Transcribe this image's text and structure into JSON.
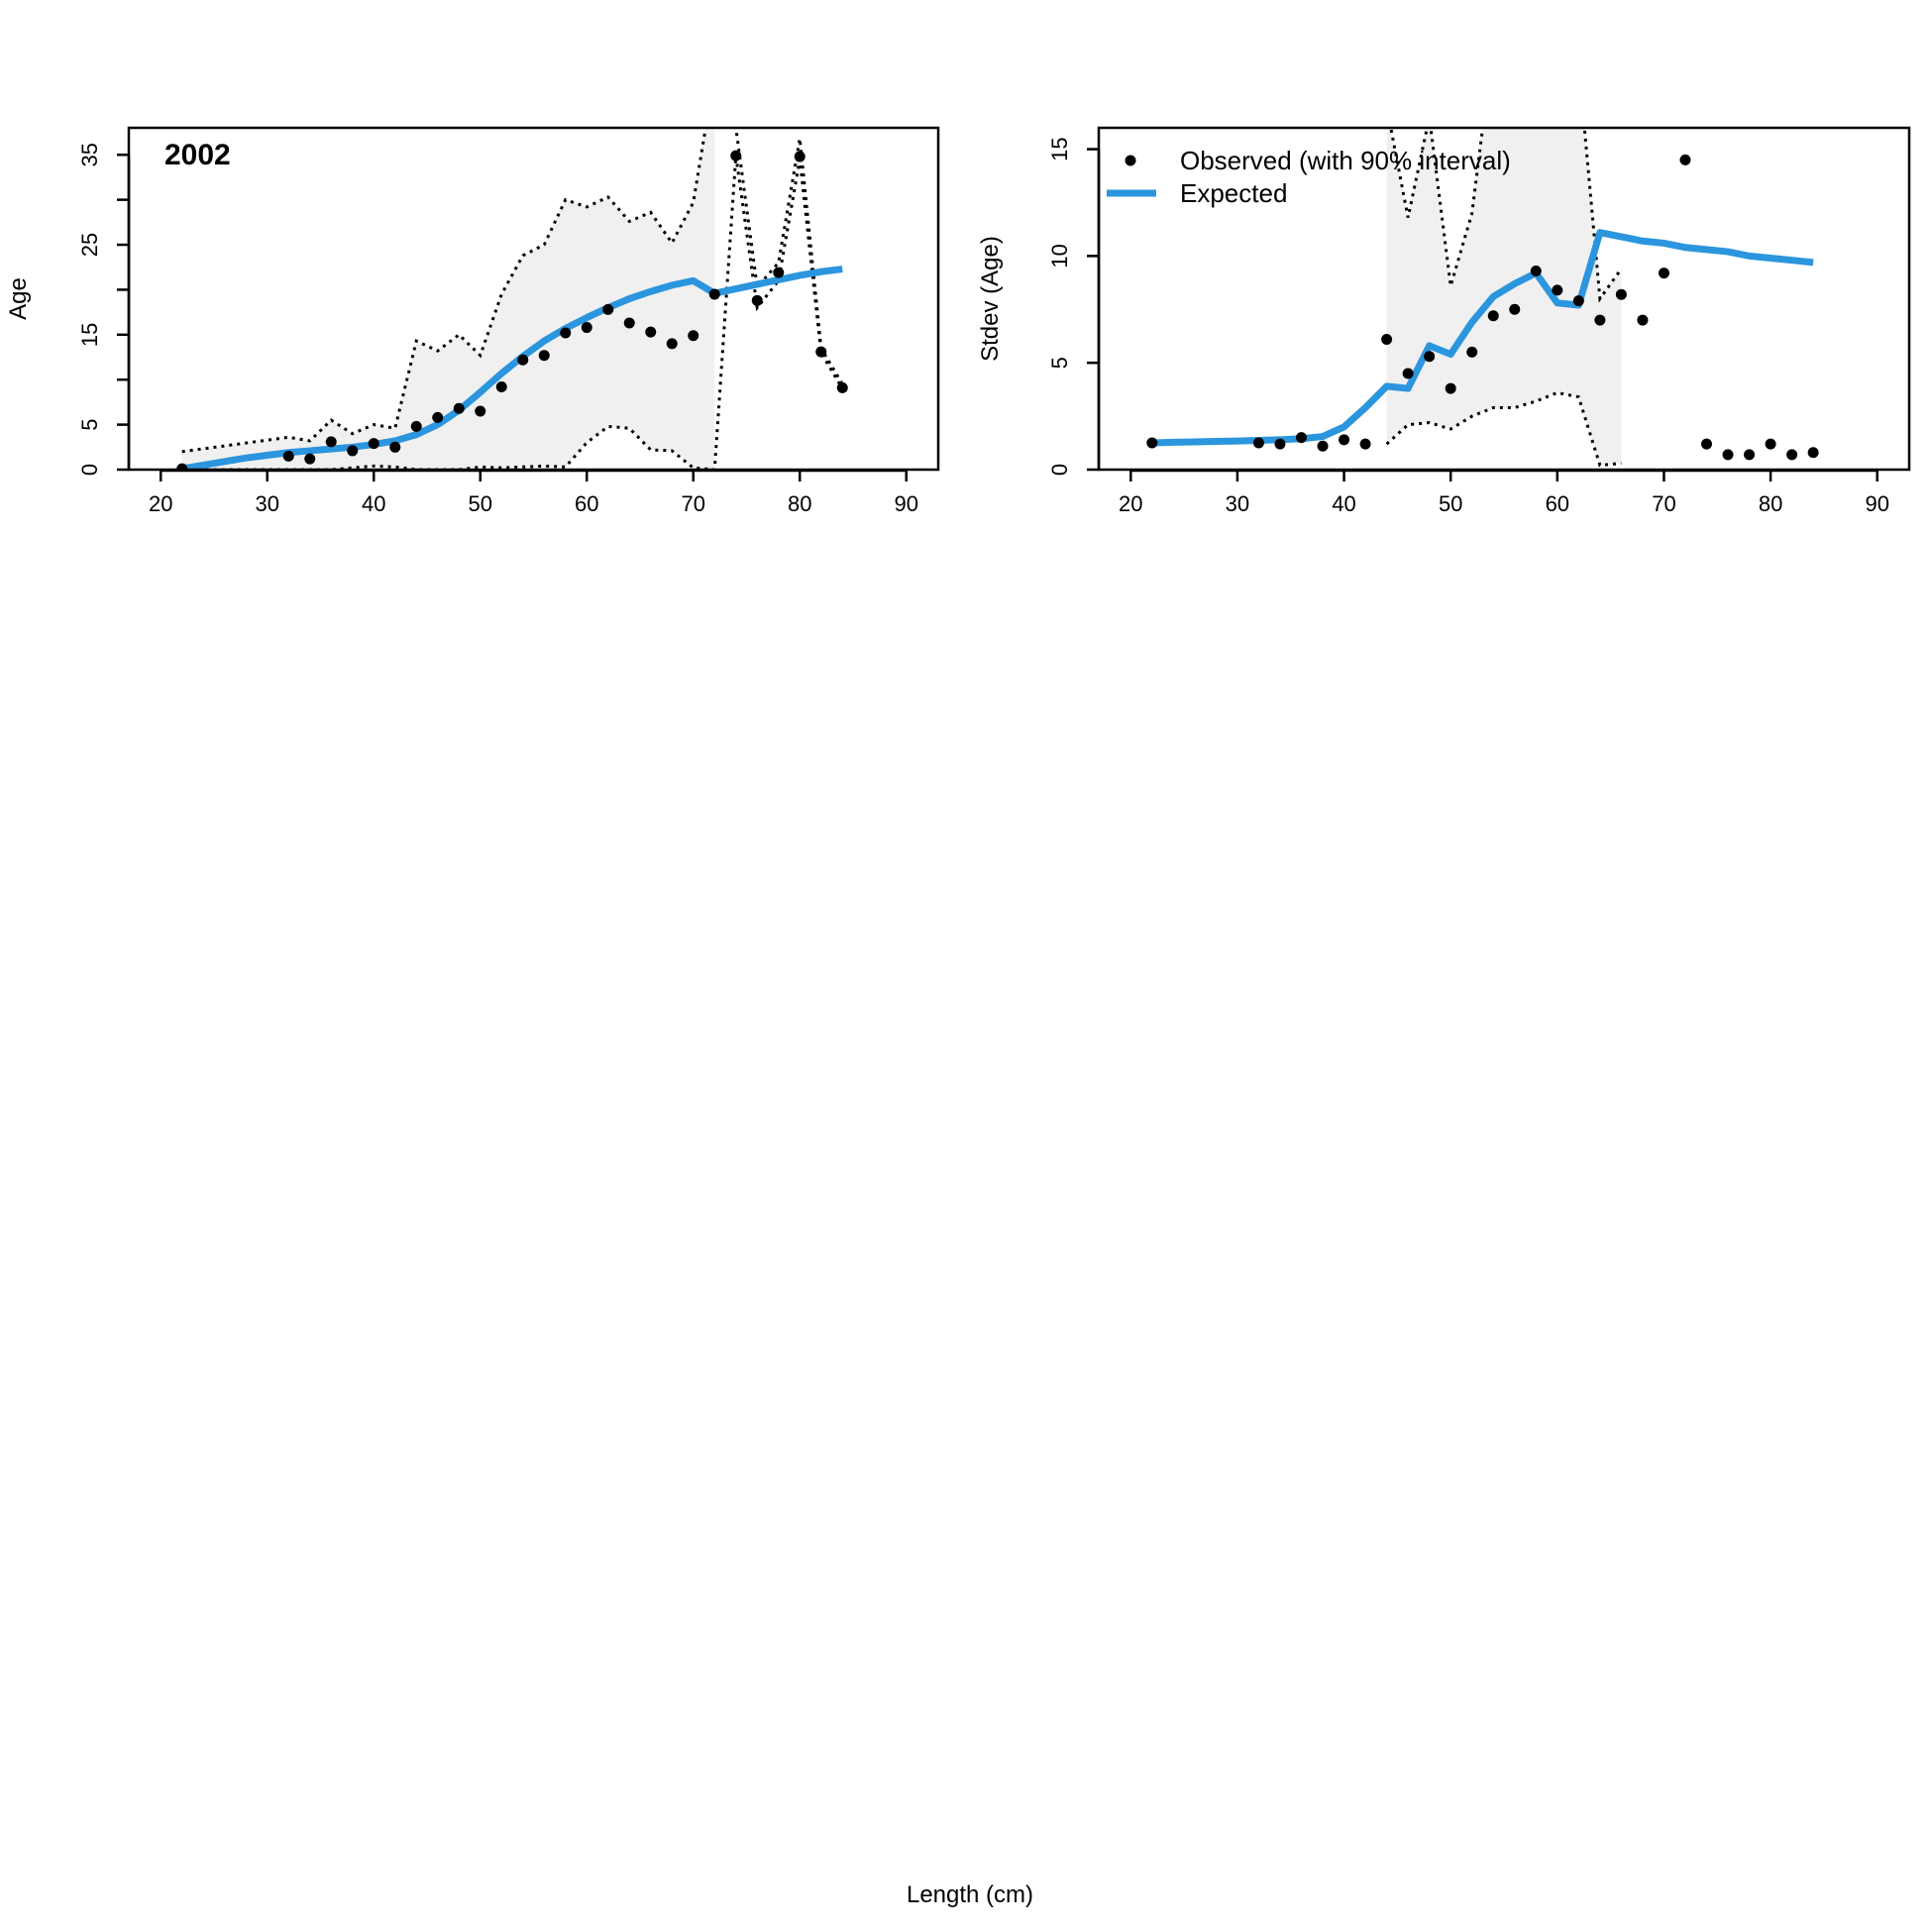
{
  "figure": {
    "shared_xlabel": "Length (cm)",
    "colors": {
      "expected": "#2b95de",
      "interval_fill": "#f0f0f0",
      "points": "#000000",
      "interval_line": "#000000"
    }
  },
  "chart_data": [
    {
      "type": "line",
      "panel_label": "2002",
      "xlabel": "",
      "ylabel": "Age",
      "xlim": [
        17,
        93
      ],
      "ylim": [
        0,
        38
      ],
      "xticks": [
        20,
        30,
        40,
        50,
        60,
        70,
        80,
        90
      ],
      "yticks": [
        0,
        5,
        15,
        25,
        35
      ],
      "yticks_minor": [
        10,
        20,
        30
      ],
      "grid": false,
      "series": [
        {
          "name": "Observed (with 90% interval)",
          "kind": "points",
          "x": [
            22,
            32,
            34,
            36,
            38,
            40,
            42,
            44,
            46,
            48,
            50,
            52,
            54,
            56,
            58,
            60,
            62,
            64,
            66,
            68,
            70,
            72,
            74,
            76,
            78,
            80,
            82,
            84
          ],
          "y": [
            0.1,
            1.5,
            1.2,
            3.1,
            2.1,
            2.9,
            2.5,
            4.8,
            5.8,
            6.8,
            6.5,
            9.2,
            12.2,
            12.7,
            15.2,
            15.8,
            17.8,
            16.3,
            15.3,
            14.0,
            14.9,
            19.5,
            34.9,
            18.8,
            21.9,
            34.8,
            13.1,
            9.1
          ],
          "interval_low": [
            0,
            0,
            0,
            0,
            0.2,
            0.4,
            0.3,
            0,
            0,
            0,
            0.3,
            0.2,
            0.3,
            0.4,
            0.3,
            3.0,
            4.8,
            4.6,
            2.2,
            2.1,
            0.2,
            0,
            34.9,
            18.0,
            21.0,
            34.5,
            13.0,
            9.0
          ],
          "interval_high": [
            2.0,
            3.6,
            3.2,
            5.5,
            4.0,
            5.0,
            4.6,
            14.3,
            13.2,
            15.0,
            12.7,
            19.5,
            23.8,
            25.0,
            30.0,
            29.2,
            30.3,
            27.6,
            28.6,
            25.2,
            29.7,
            44.0,
            38.0,
            20.3,
            23.0,
            36.8,
            13.5,
            9.5
          ],
          "interval_shaded": [
            true,
            true,
            true,
            true,
            true,
            true,
            true,
            true,
            true,
            true,
            true,
            true,
            true,
            true,
            true,
            true,
            true,
            true,
            true,
            true,
            true,
            true,
            false,
            false,
            false,
            false,
            false,
            false
          ]
        },
        {
          "name": "Expected",
          "kind": "line",
          "x": [
            22,
            24,
            26,
            28,
            30,
            32,
            34,
            36,
            38,
            40,
            42,
            44,
            46,
            48,
            50,
            52,
            54,
            56,
            58,
            60,
            62,
            64,
            66,
            68,
            70,
            72,
            74,
            76,
            78,
            80,
            82,
            84
          ],
          "y": [
            0.1,
            0.5,
            0.9,
            1.3,
            1.6,
            1.9,
            2.1,
            2.3,
            2.5,
            2.8,
            3.2,
            3.9,
            5.0,
            6.6,
            8.6,
            10.7,
            12.6,
            14.3,
            15.7,
            16.9,
            18.0,
            19.0,
            19.8,
            20.5,
            21.0,
            19.6,
            20.1,
            20.6,
            21.1,
            21.6,
            22.0,
            22.3
          ]
        }
      ]
    },
    {
      "type": "line",
      "panel_label": "",
      "xlabel": "",
      "ylabel": "Stdev (Age)",
      "xlim": [
        17,
        93
      ],
      "ylim": [
        0,
        16
      ],
      "xticks": [
        20,
        30,
        40,
        50,
        60,
        70,
        80,
        90
      ],
      "yticks": [
        0,
        5,
        10,
        15
      ],
      "grid": false,
      "legend": {
        "placement": "top-left",
        "entries": [
          {
            "label": "Observed (with 90% interval)",
            "symbol": "point"
          },
          {
            "label": "Expected",
            "symbol": "line"
          }
        ]
      },
      "series": [
        {
          "name": "Observed (with 90% interval)",
          "kind": "points",
          "x": [
            22,
            32,
            34,
            36,
            38,
            40,
            42,
            44,
            46,
            48,
            50,
            52,
            54,
            56,
            58,
            60,
            62,
            64,
            66,
            68,
            70,
            72,
            74,
            76,
            78,
            80,
            82,
            84
          ],
          "y": [
            1.25,
            1.25,
            1.2,
            1.5,
            1.1,
            1.4,
            1.2,
            6.1,
            4.5,
            5.3,
            3.8,
            5.5,
            7.2,
            7.5,
            9.3,
            8.4,
            7.9,
            7.0,
            8.2,
            7.0,
            9.2,
            14.5,
            1.2,
            0.7,
            0.7,
            1.2,
            0.7,
            0.8
          ],
          "interval_low": [
            null,
            null,
            null,
            null,
            null,
            null,
            null,
            1.2,
            2.1,
            2.2,
            1.9,
            2.5,
            2.9,
            2.9,
            3.2,
            3.6,
            3.4,
            0.2,
            0.3,
            null,
            null,
            null,
            null,
            null,
            null,
            null,
            null,
            null
          ],
          "interval_high": [
            null,
            null,
            null,
            null,
            null,
            null,
            null,
            17.0,
            11.8,
            16.5,
            8.6,
            12.0,
            20.0,
            22.0,
            22.0,
            21.0,
            19.0,
            8.0,
            9.4,
            null,
            null,
            null,
            null,
            null,
            null,
            null,
            null,
            null
          ],
          "interval_shaded": [
            false,
            false,
            false,
            false,
            false,
            false,
            false,
            true,
            true,
            true,
            true,
            true,
            true,
            true,
            true,
            true,
            true,
            true,
            true,
            false,
            false,
            false,
            false,
            false,
            false,
            false,
            false,
            false
          ]
        },
        {
          "name": "Expected",
          "kind": "line",
          "x": [
            22,
            24,
            26,
            28,
            30,
            32,
            34,
            36,
            38,
            40,
            42,
            44,
            46,
            48,
            50,
            52,
            54,
            56,
            58,
            60,
            62,
            64,
            66,
            68,
            70,
            72,
            74,
            76,
            78,
            80,
            82,
            84
          ],
          "y": [
            1.25,
            1.28,
            1.3,
            1.32,
            1.34,
            1.37,
            1.4,
            1.45,
            1.55,
            2.0,
            2.9,
            3.9,
            3.8,
            5.8,
            5.4,
            6.9,
            8.1,
            8.7,
            9.2,
            7.8,
            7.7,
            11.1,
            10.9,
            10.7,
            10.6,
            10.4,
            10.3,
            10.2,
            10.0,
            9.9,
            9.8,
            9.7
          ]
        }
      ]
    }
  ]
}
